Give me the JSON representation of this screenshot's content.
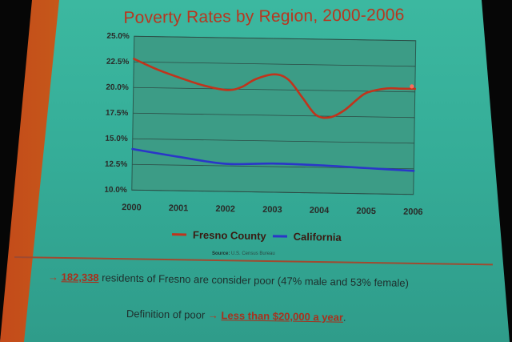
{
  "slide": {
    "title": "Poverty Rates by Region, 2000-2006",
    "source_label": "Source:",
    "source_text": "U.S. Census Bureau",
    "bullet1_arrow": "→",
    "bullet1_highlight": "182,338",
    "bullet1_text": " residents of Fresno are consider poor (47% male and 53% female)",
    "bullet2_prefix": "Definition of poor ",
    "bullet2_arrow": "→",
    "bullet2_highlight": "Less than $20,000 a year",
    "bullet2_suffix": "."
  },
  "colors": {
    "fresno": "#c0341c",
    "california": "#2a36c8",
    "plot_bg": "#3c9c86"
  },
  "chart_data": {
    "type": "line",
    "title": "Poverty Rates by Region, 2000-2006",
    "xlabel": "",
    "ylabel": "",
    "x": [
      2000,
      2001,
      2002,
      2003,
      2004,
      2005,
      2006
    ],
    "xlim": [
      2000,
      2006
    ],
    "ylim": [
      10.0,
      25.0
    ],
    "yticks": [
      "10.0%",
      "12.5%",
      "15.0%",
      "17.5%",
      "20.0%",
      "22.5%",
      "25.0%"
    ],
    "xticks": [
      "2000",
      "2001",
      "2002",
      "2003",
      "2004",
      "2005",
      "2006"
    ],
    "grid": true,
    "legend": "bottom",
    "series": [
      {
        "name": "Fresno County",
        "color": "#c0341c",
        "points": [
          [
            2000,
            22.8
          ],
          [
            2000.5,
            21.8
          ],
          [
            2001,
            21.0
          ],
          [
            2001.5,
            20.3
          ],
          [
            2002,
            19.9
          ],
          [
            2002.3,
            20.2
          ],
          [
            2002.6,
            21.0
          ],
          [
            2003,
            21.5
          ],
          [
            2003.3,
            21.0
          ],
          [
            2003.6,
            19.3
          ],
          [
            2003.9,
            17.6
          ],
          [
            2004.2,
            17.4
          ],
          [
            2004.5,
            18.1
          ],
          [
            2004.8,
            19.3
          ],
          [
            2005,
            19.9
          ],
          [
            2005.4,
            20.3
          ],
          [
            2005.7,
            20.3
          ],
          [
            2006,
            20.3
          ]
        ]
      },
      {
        "name": "California",
        "color": "#2a36c8",
        "points": [
          [
            2000,
            14.0
          ],
          [
            2001,
            13.3
          ],
          [
            2002,
            12.7
          ],
          [
            2003,
            12.8
          ],
          [
            2004,
            12.7
          ],
          [
            2005,
            12.5
          ],
          [
            2006,
            12.3
          ]
        ]
      }
    ]
  }
}
